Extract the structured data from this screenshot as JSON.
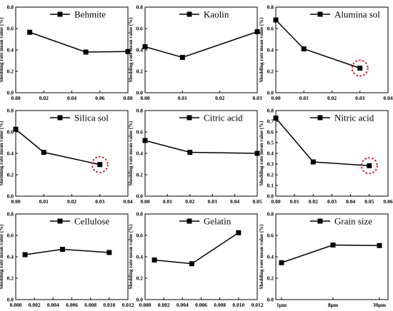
{
  "chart_data": [
    {
      "type": "line",
      "legend": "Behmite",
      "ylabel": "Shedding rate mean value (%)",
      "x": [
        0.01,
        0.05,
        0.08
      ],
      "y": [
        0.565,
        0.38,
        0.385
      ],
      "xlim": [
        0,
        0.08
      ],
      "xticks": [
        "0.00",
        "0.02",
        "0.04",
        "0.06",
        "0.08"
      ],
      "ylim": [
        0,
        0.8
      ],
      "yticks": [
        "0.0",
        "0.2",
        "0.4",
        "0.6",
        "0.8"
      ],
      "highlight": null
    },
    {
      "type": "line",
      "legend": "Kaolin",
      "ylabel": "Shedding rate mean value (%)",
      "x": [
        0.0,
        0.01,
        0.03
      ],
      "y": [
        0.43,
        0.33,
        0.57
      ],
      "xlim": [
        0,
        0.03
      ],
      "xticks": [
        "0.00",
        "0.01",
        "0.02",
        "0.03"
      ],
      "ylim": [
        0,
        0.8
      ],
      "yticks": [
        "0.0",
        "0.2",
        "0.4",
        "0.6",
        "0.8"
      ],
      "highlight": null
    },
    {
      "type": "line",
      "legend": "Alumina sol",
      "ylabel": "Shedding rate mean value (%)",
      "x": [
        0.0,
        0.01,
        0.03
      ],
      "y": [
        0.68,
        0.41,
        0.23
      ],
      "xlim": [
        0,
        0.04
      ],
      "xticks": [
        "0.00",
        "0.01",
        "0.02",
        "0.03",
        "0.04"
      ],
      "ylim": [
        0,
        0.8
      ],
      "yticks": [
        "0.0",
        "0.2",
        "0.4",
        "0.6",
        "0.8"
      ],
      "highlight": 2
    },
    {
      "type": "line",
      "legend": "Silica sol",
      "ylabel": "Shedding rate mean value (%)",
      "x": [
        0.0,
        0.01,
        0.03
      ],
      "y": [
        0.625,
        0.41,
        0.295
      ],
      "xlim": [
        0,
        0.04
      ],
      "xticks": [
        "0.00",
        "0.01",
        "0.02",
        "0.03",
        "0.04"
      ],
      "ylim": [
        0,
        0.8
      ],
      "yticks": [
        "0.0",
        "0.2",
        "0.4",
        "0.6",
        "0.8"
      ],
      "highlight": 2
    },
    {
      "type": "line",
      "legend": "Citric acid",
      "ylabel": "Shedding rate mean value (%)",
      "x": [
        0.0,
        0.02,
        0.05
      ],
      "y": [
        0.52,
        0.41,
        0.4
      ],
      "xlim": [
        0,
        0.05
      ],
      "xticks": [
        "0.00",
        "0.01",
        "0.02",
        "0.03",
        "0.04",
        "0.05"
      ],
      "ylim": [
        0,
        0.8
      ],
      "yticks": [
        "0.0",
        "0.2",
        "0.4",
        "0.6",
        "0.8"
      ],
      "highlight": null
    },
    {
      "type": "line",
      "legend": "Nitric acid",
      "ylabel": "Shedding rate mean value (%)",
      "x": [
        0.0,
        0.02,
        0.05
      ],
      "y": [
        0.73,
        0.32,
        0.285
      ],
      "xlim": [
        0,
        0.06
      ],
      "xticks": [
        "0.00",
        "0.01",
        "0.02",
        "0.03",
        "0.04",
        "0.05",
        "0.06"
      ],
      "ylim": [
        0,
        0.8
      ],
      "yticks": [
        "0.0",
        "0.1",
        "0.2",
        "0.3",
        "0.4",
        "0.5",
        "0.6",
        "0.7",
        "0.8"
      ],
      "highlight": 2
    },
    {
      "type": "line",
      "legend": "Cellulose",
      "ylabel": "Shedding rate mean value (%)",
      "x": [
        0.001,
        0.005,
        0.01
      ],
      "y": [
        0.42,
        0.47,
        0.44
      ],
      "xlim": [
        0,
        0.012
      ],
      "xticks": [
        "0.000",
        "0.002",
        "0.004",
        "0.006",
        "0.008",
        "0.010",
        "0.012"
      ],
      "ylim": [
        0,
        0.8
      ],
      "yticks": [
        "0.0",
        "0.2",
        "0.4",
        "0.6",
        "0.8"
      ],
      "highlight": null
    },
    {
      "type": "line",
      "legend": "Gelatin",
      "ylabel": "Shedding rate mean value (%)",
      "x": [
        0.001,
        0.005,
        0.01
      ],
      "y": [
        0.37,
        0.335,
        0.625
      ],
      "xlim": [
        0,
        0.012
      ],
      "xticks": [
        "0.000",
        "0.002",
        "0.004",
        "0.006",
        "0.008",
        "0.010",
        "0.012"
      ],
      "ylim": [
        0,
        0.8
      ],
      "yticks": [
        "0.0",
        "0.2",
        "0.4",
        "0.6",
        "0.8"
      ],
      "highlight": null
    },
    {
      "type": "line",
      "legend": "Grain size",
      "ylabel": "Shedding rate mean value (%)",
      "categories": [
        "1μm",
        "8μm",
        "30μm"
      ],
      "y": [
        0.345,
        0.51,
        0.505
      ],
      "xticks": [
        "1μm",
        "8μm",
        "30μm"
      ],
      "ylim": [
        0,
        0.8
      ],
      "yticks": [
        "0.0",
        "0.2",
        "0.4",
        "0.6",
        "0.8"
      ],
      "highlight": null
    }
  ],
  "colors": {
    "line": "#000000",
    "highlight": "#e8151b"
  }
}
